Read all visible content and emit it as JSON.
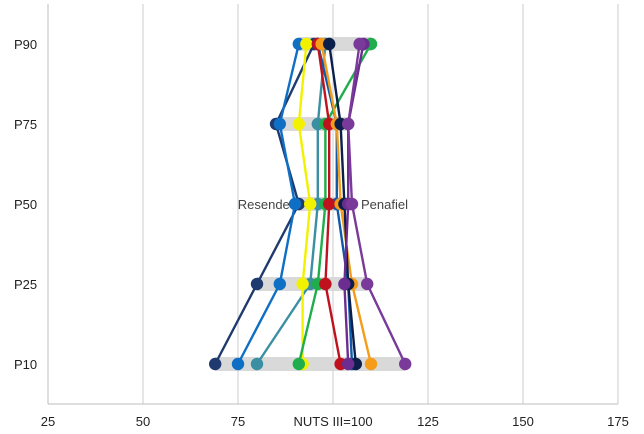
{
  "chart_data": {
    "type": "scatter",
    "title": "",
    "xlabel": "NUTS III=100",
    "ylabel": "",
    "xlim": [
      25,
      175
    ],
    "x_ticks": [
      25,
      50,
      75,
      100,
      125,
      150,
      175
    ],
    "x_tick_labels": [
      "25",
      "50",
      "75",
      "",
      "125",
      "150",
      "175"
    ],
    "categories": [
      "P90",
      "P75",
      "P50",
      "P25",
      "P10"
    ],
    "grid": true,
    "legend": "none",
    "range_bar_color": "#d9d9d9",
    "series": [
      {
        "color": "#1f3a6e",
        "values": [
          95,
          85,
          91,
          80,
          69
        ]
      },
      {
        "color": "#0e6fc4",
        "values": [
          91,
          86,
          90,
          86,
          75
        ]
      },
      {
        "color": "#3a8fa3",
        "values": [
          98,
          96,
          96,
          94,
          80
        ]
      },
      {
        "color": "#0f5aa8",
        "values": [
          96,
          101,
          101,
          104,
          105
        ]
      },
      {
        "color": "#f2f200",
        "values": [
          93,
          91,
          94,
          92,
          92
        ]
      },
      {
        "color": "#1fae4b",
        "values": [
          110,
          98,
          98,
          96,
          91
        ]
      },
      {
        "color": "#c0111f",
        "values": [
          96,
          99,
          99,
          98,
          102
        ]
      },
      {
        "color": "#f59c1a",
        "values": [
          97,
          101,
          102,
          105,
          110
        ]
      },
      {
        "color": "#0b1f4a",
        "values": [
          99,
          102,
          103,
          104,
          106
        ]
      },
      {
        "color": "#6b2d8f",
        "values": [
          108,
          104,
          104,
          103,
          104
        ]
      },
      {
        "color": "#7a3a9a",
        "values": [
          107,
          104,
          105,
          109,
          119
        ]
      }
    ],
    "annotations": [
      {
        "text": "Resende",
        "category": "P50",
        "x": 91,
        "anchor": "end"
      },
      {
        "text": "Penafiel",
        "category": "P50",
        "x": 105,
        "anchor": "start"
      }
    ]
  }
}
